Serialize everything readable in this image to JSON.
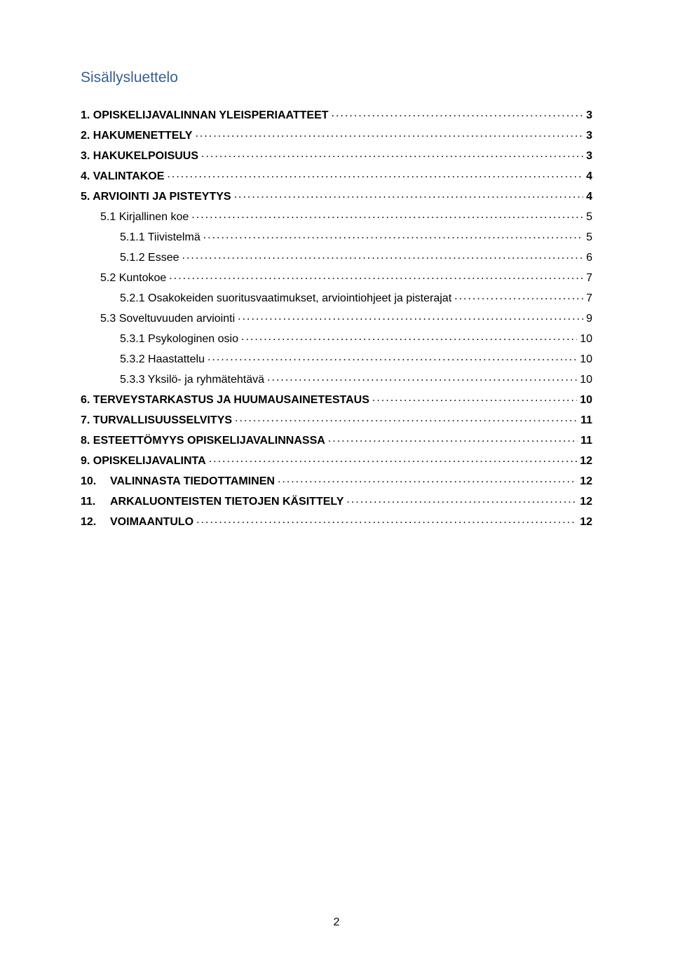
{
  "title": "Sisällysluettelo",
  "entries": [
    {
      "label": "1. OPISKELIJAVALINNAN YLEISPERIAATTEET",
      "page": "3",
      "level": 1,
      "bold": true
    },
    {
      "label": "2. HAKUMENETTELY",
      "page": "3",
      "level": 1,
      "bold": true
    },
    {
      "label": "3. HAKUKELPOISUUS",
      "page": "3",
      "level": 1,
      "bold": true
    },
    {
      "label": "4. VALINTAKOE",
      "page": "4",
      "level": 1,
      "bold": true
    },
    {
      "label": "5. ARVIOINTI JA PISTEYTYS",
      "page": "4",
      "level": 1,
      "bold": true
    },
    {
      "label": "5.1 Kirjallinen koe",
      "page": "5",
      "level": 2,
      "bold": false
    },
    {
      "label": "5.1.1   Tiivistelmä",
      "page": "5",
      "level": 3,
      "bold": false
    },
    {
      "label": "5.1.2   Essee",
      "page": "6",
      "level": 3,
      "bold": false
    },
    {
      "label": "5.2 Kuntokoe",
      "page": "7",
      "level": 2,
      "bold": false
    },
    {
      "label": "5.2.1   Osakokeiden suoritusvaatimukset, arviointiohjeet ja pisterajat",
      "page": "7",
      "level": 3,
      "bold": false
    },
    {
      "label": "5.3 Soveltuvuuden arviointi",
      "page": "9",
      "level": 2,
      "bold": false
    },
    {
      "label": "5.3.1   Psykologinen osio",
      "page": "10",
      "level": 3,
      "bold": false
    },
    {
      "label": "5.3.2   Haastattelu",
      "page": "10",
      "level": 3,
      "bold": false
    },
    {
      "label": "5.3.3   Yksilö- ja ryhmätehtävä",
      "page": "10",
      "level": 3,
      "bold": false
    },
    {
      "label": "6. TERVEYSTARKASTUS JA HUUMAUSAINETESTAUS",
      "page": "10",
      "level": 1,
      "bold": true
    },
    {
      "label": "7. TURVALLISUUSSELVITYS",
      "page": "11",
      "level": 1,
      "bold": true
    },
    {
      "label": "8. ESTEETTÖMYYS OPISKELIJAVALINNASSA",
      "page": "11",
      "level": 1,
      "bold": true
    },
    {
      "label": "9. OPISKELIJAVALINTA",
      "page": "12",
      "level": 1,
      "bold": true
    },
    {
      "label": "10.",
      "label2": "VALINNASTA TIEDOTTAMINEN",
      "page": "12",
      "level": 1,
      "bold": true,
      "split": true
    },
    {
      "label": "11.",
      "label2": "ARKALUONTEISTEN TIETOJEN KÄSITTELY",
      "page": "12",
      "level": 1,
      "bold": true,
      "split": true
    },
    {
      "label": "12.",
      "label2": "VOIMAANTULO",
      "page": "12",
      "level": 1,
      "bold": true,
      "split": true
    }
  ],
  "pageNumber": "2",
  "colors": {
    "title": "#365f91",
    "text": "#000000",
    "background": "#ffffff"
  }
}
